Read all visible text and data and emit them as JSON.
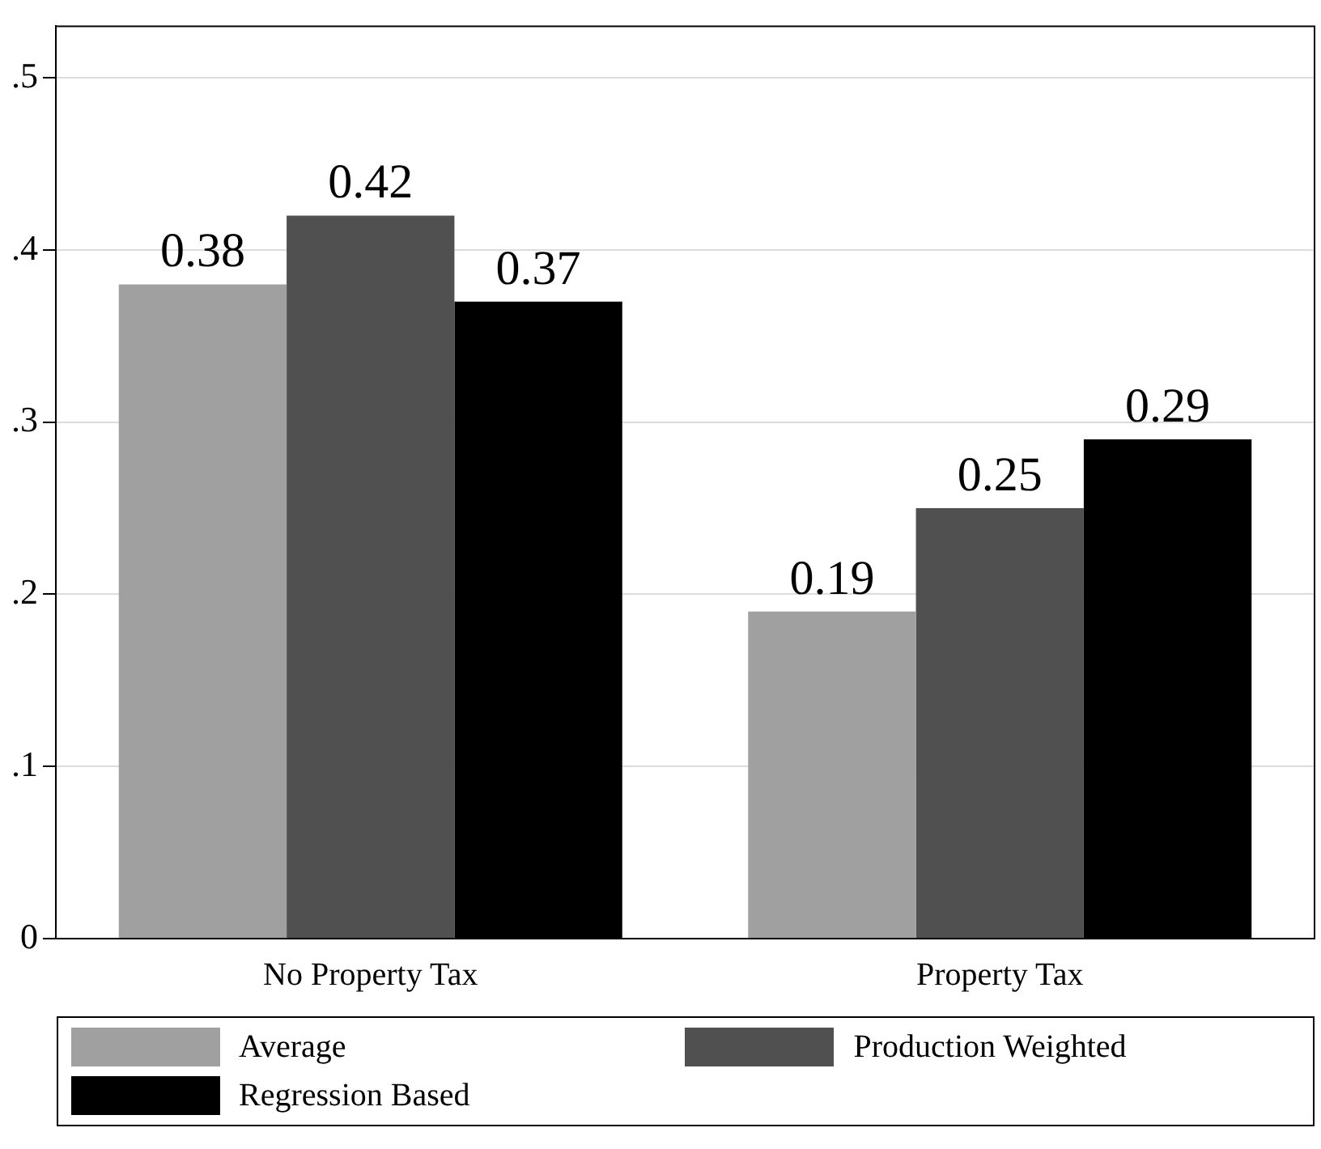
{
  "chart_data": {
    "type": "bar",
    "categories": [
      "No Property Tax",
      "Property Tax"
    ],
    "series": [
      {
        "name": "Average",
        "color": "#a0a0a0",
        "values": [
          0.38,
          0.19
        ]
      },
      {
        "name": "Production Weighted",
        "color": "#505050",
        "values": [
          0.42,
          0.25
        ]
      },
      {
        "name": "Regression Based",
        "color": "#000000",
        "values": [
          0.37,
          0.29
        ]
      }
    ],
    "ylim": [
      0,
      0.53
    ],
    "yticks": [
      0,
      {
        "value": 0.1,
        "label": ".1"
      },
      {
        "value": 0.2,
        "label": ".2"
      },
      {
        "value": 0.3,
        "label": ".3"
      },
      {
        "value": 0.4,
        "label": ".4"
      },
      {
        "value": 0.5,
        "label": ".5"
      }
    ],
    "grid": "y",
    "legend": "bottom",
    "data_labels": true
  }
}
